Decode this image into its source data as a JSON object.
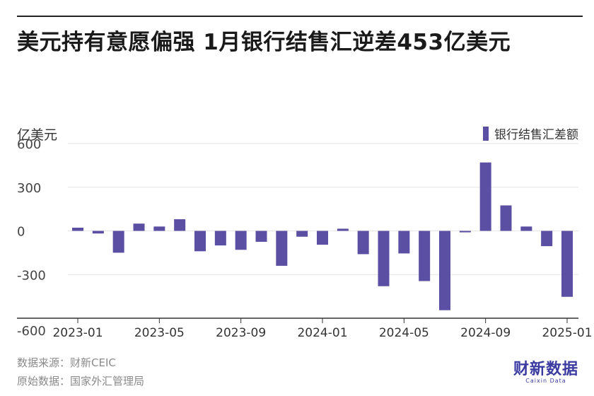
{
  "title": "美元持有意愿偏强 1月银行结售汇逆差453亿美元",
  "footer": {
    "source": "数据来源：财新CEIC",
    "raw_source": "原始数据：国家外汇管理局"
  },
  "logo": {
    "main": "财新数据",
    "sub": "Caixin Data"
  },
  "colors": {
    "bar": "#5b4fa3",
    "grid": "#e6e6e6",
    "axis": "#333333"
  },
  "chart_data": {
    "type": "bar",
    "ylabel": "亿美元",
    "ylim": [
      -600,
      600
    ],
    "yticks": [
      600,
      300,
      0,
      -300,
      -600
    ],
    "legend_position": "top-right",
    "grid": true,
    "categories": [
      "2023-01",
      "2023-02",
      "2023-03",
      "2023-04",
      "2023-05",
      "2023-06",
      "2023-07",
      "2023-08",
      "2023-09",
      "2023-10",
      "2023-11",
      "2023-12",
      "2024-01",
      "2024-02",
      "2024-03",
      "2024-04",
      "2024-05",
      "2024-06",
      "2024-07",
      "2024-08",
      "2024-09",
      "2024-10",
      "2024-11",
      "2024-12",
      "2025-01"
    ],
    "x_tick_labels": [
      "2023-01",
      "2023-05",
      "2023-09",
      "2024-01",
      "2024-05",
      "2024-09",
      "2025-01"
    ],
    "series": [
      {
        "name": "银行结售汇差额",
        "values": [
          22,
          -18,
          -150,
          50,
          30,
          80,
          -140,
          -100,
          -130,
          -75,
          -240,
          -40,
          -95,
          15,
          -160,
          -380,
          -155,
          -345,
          -545,
          -10,
          470,
          175,
          30,
          -105,
          -453
        ]
      }
    ]
  }
}
